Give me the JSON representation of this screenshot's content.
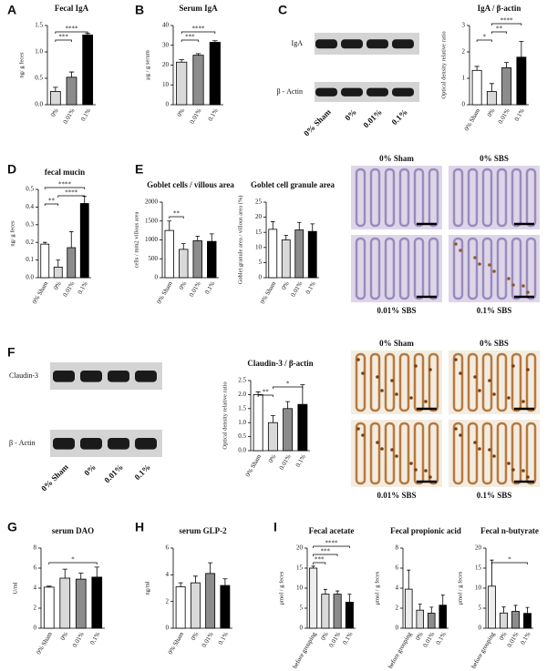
{
  "chart_data": [
    {
      "type": "bar",
      "panel": "A",
      "title": "Fecal IgA",
      "y_label": "ng/ g feces",
      "categories": [
        "0%",
        "0.01%",
        "0.1%"
      ],
      "values": [
        0.25,
        0.52,
        1.32
      ],
      "errors": [
        0.08,
        0.1,
        0.03
      ],
      "colors": [
        "#d9d9d9",
        "#8c8c8c",
        "#000000"
      ],
      "ylim": [
        0,
        1.5
      ],
      "yticks": [
        {
          "value": 0,
          "label": "0.0"
        },
        0.5,
        {
          "value": 1,
          "label": "1.0"
        },
        1.5
      ],
      "annotations": [
        {
          "text": "***",
          "from": 0,
          "to": 1
        },
        {
          "text": "****",
          "from": 0,
          "to": 2
        }
      ]
    },
    {
      "type": "bar",
      "panel": "B",
      "title": "Serum IgA",
      "y_label": "μg / g serum",
      "categories": [
        "0%",
        "0.01%",
        "0.1%"
      ],
      "values": [
        21.5,
        25,
        31.5
      ],
      "errors": [
        1.2,
        0.8,
        0.8
      ],
      "colors": [
        "#d9d9d9",
        "#8c8c8c",
        "#000000"
      ],
      "ylim": [
        0,
        40
      ],
      "yticks": [
        0,
        10,
        20,
        30,
        40
      ],
      "annotations": [
        {
          "text": "***",
          "from": 0,
          "to": 1
        },
        {
          "text": "****",
          "from": 0,
          "to": 2
        }
      ]
    },
    {
      "type": "bar",
      "title": "IgA / β-actin",
      "y_label": "Optical density relative ratio",
      "categories": [
        "0% Sham",
        "0%",
        "0.01%",
        "0.1%"
      ],
      "values": [
        1.3,
        0.5,
        1.4,
        1.8
      ],
      "errors": [
        0.15,
        0.3,
        0.2,
        0.6
      ],
      "colors": [
        "#ffffff",
        "#d9d9d9",
        "#8c8c8c",
        "#000000"
      ],
      "ylim": [
        0,
        3
      ],
      "yticks": [
        0,
        1,
        2,
        3
      ],
      "annotations": [
        {
          "text": "*",
          "from": 0,
          "to": 1
        },
        {
          "text": "**",
          "from": 1,
          "to": 2
        },
        {
          "text": "****",
          "from": 1,
          "to": 3
        }
      ]
    },
    {
      "type": "bar",
      "panel": "D",
      "title": "fecal mucin",
      "y_label": "ng/ g feces",
      "categories": [
        "0% Sham",
        "0%",
        "0.01%",
        "0.1%"
      ],
      "values": [
        0.19,
        0.06,
        0.17,
        0.42
      ],
      "errors": [
        0.01,
        0.04,
        0.09,
        0.04
      ],
      "colors": [
        "#ffffff",
        "#d9d9d9",
        "#8c8c8c",
        "#000000"
      ],
      "ylim": [
        0,
        0.5
      ],
      "yticks": [
        {
          "value": 0,
          "label": "0.0"
        },
        0.1,
        0.2,
        0.3,
        0.4,
        0.5
      ],
      "annotations": [
        {
          "text": "**",
          "from": 0,
          "to": 1
        },
        {
          "text": "****",
          "from": 1,
          "to": 3
        },
        {
          "text": "****",
          "from": 0,
          "to": 3
        }
      ]
    },
    {
      "type": "bar",
      "panel": "E",
      "title": "Goblet cells / villous area",
      "y_label": "cells / mm2 villous area",
      "categories": [
        "0% Sham",
        "0%",
        "0.01%",
        "0.1%"
      ],
      "values": [
        1250,
        750,
        980,
        960
      ],
      "errors": [
        250,
        150,
        120,
        200
      ],
      "colors": [
        "#ffffff",
        "#d9d9d9",
        "#8c8c8c",
        "#000000"
      ],
      "ylim": [
        0,
        2000
      ],
      "yticks": [
        0,
        500,
        1000,
        1500,
        2000
      ],
      "annotations": [
        {
          "text": "**",
          "from": 0,
          "to": 1
        }
      ]
    },
    {
      "type": "bar",
      "title": "Goblet cell granule area",
      "y_label": "Goblet granule area / villous area (%)",
      "categories": [
        "0% Sham",
        "0%",
        "0.01%",
        "0.1%"
      ],
      "values": [
        16,
        12.5,
        15.8,
        15.3
      ],
      "errors": [
        2.5,
        1.5,
        2.5,
        2.5
      ],
      "colors": [
        "#ffffff",
        "#d9d9d9",
        "#8c8c8c",
        "#000000"
      ],
      "ylim": [
        0,
        25
      ],
      "yticks": [
        0,
        5,
        10,
        15,
        20,
        25
      ],
      "annotations": []
    },
    {
      "type": "bar",
      "title": "Claudin-3 / β-actin",
      "y_label": "Optical density relative ratio",
      "categories": [
        "0% Sham",
        "0%",
        "0.01%",
        "0.1%"
      ],
      "values": [
        2.0,
        1.0,
        1.5,
        1.65
      ],
      "errors": [
        0.1,
        0.25,
        0.25,
        0.7
      ],
      "colors": [
        "#ffffff",
        "#d9d9d9",
        "#8c8c8c",
        "#000000"
      ],
      "ylim": [
        0,
        2.5
      ],
      "yticks": [
        {
          "value": 0,
          "label": "0.0"
        },
        0.5,
        {
          "value": 1,
          "label": "1.0"
        },
        1.5,
        {
          "value": 2,
          "label": "2.0"
        },
        2.5
      ],
      "annotations": [
        {
          "text": "**",
          "from": 0,
          "to": 1
        },
        {
          "text": "*",
          "from": 1,
          "to": 3
        }
      ]
    },
    {
      "type": "bar",
      "panel": "G",
      "title": "serum DAO",
      "y_label": "U/ml",
      "categories": [
        "0% Sham",
        "0%",
        "0.01%",
        "0.1%"
      ],
      "values": [
        4.1,
        5.0,
        4.9,
        5.1
      ],
      "errors": [
        0.1,
        0.9,
        0.6,
        1.0
      ],
      "colors": [
        "#ffffff",
        "#d9d9d9",
        "#8c8c8c",
        "#000000"
      ],
      "ylim": [
        0,
        8
      ],
      "yticks": [
        0,
        2,
        4,
        6,
        8
      ],
      "annotations": [
        {
          "text": "*",
          "from": 0,
          "to": 3
        }
      ]
    },
    {
      "type": "bar",
      "panel": "H",
      "title": "serum GLP-2",
      "y_label": "ng/ml",
      "categories": [
        "0% Sham",
        "0%",
        "0.01%",
        "0.1%"
      ],
      "values": [
        3.1,
        3.4,
        4.1,
        3.2
      ],
      "errors": [
        0.3,
        0.5,
        0.8,
        0.5
      ],
      "colors": [
        "#ffffff",
        "#d9d9d9",
        "#8c8c8c",
        "#000000"
      ],
      "ylim": [
        0,
        6
      ],
      "yticks": [
        0,
        2,
        4,
        6
      ],
      "annotations": []
    },
    {
      "type": "bar",
      "panel": "I",
      "title": "Fecal acetate",
      "y_label": "μmol / g feces",
      "categories": [
        "before grouping",
        "0%",
        "0.01%",
        "0.1%"
      ],
      "values": [
        15,
        8.5,
        8.5,
        6.5
      ],
      "errors": [
        0.5,
        1.2,
        0.8,
        2.0
      ],
      "colors": [
        "#eeeeee",
        "#d9d9d9",
        "#8c8c8c",
        "#000000"
      ],
      "ylim": [
        0,
        20
      ],
      "yticks": [
        0,
        5,
        10,
        15,
        20
      ],
      "annotations": [
        {
          "text": "***",
          "from": 0,
          "to": 1
        },
        {
          "text": "***",
          "from": 0,
          "to": 2
        },
        {
          "text": "****",
          "from": 0,
          "to": 3
        }
      ]
    },
    {
      "type": "bar",
      "title": "Fecal propionic acid",
      "y_label": "μmol / g feces",
      "categories": [
        "before grouping",
        "0%",
        "0.01%",
        "0.1%"
      ],
      "values": [
        3.9,
        1.8,
        1.5,
        2.3
      ],
      "errors": [
        1.9,
        0.6,
        0.6,
        1.0
      ],
      "colors": [
        "#eeeeee",
        "#d9d9d9",
        "#8c8c8c",
        "#000000"
      ],
      "ylim": [
        0,
        8
      ],
      "yticks": [
        0,
        2,
        4,
        6,
        8
      ],
      "annotations": []
    },
    {
      "type": "bar",
      "title": "Fecal n-butyrate",
      "y_label": "μmol / g feces",
      "categories": [
        "before grouping",
        "0%",
        "0.01%",
        "0.1%"
      ],
      "values": [
        10.5,
        3.8,
        4.2,
        3.7
      ],
      "errors": [
        6.5,
        1.5,
        1.5,
        1.5
      ],
      "colors": [
        "#eeeeee",
        "#d9d9d9",
        "#8c8c8c",
        "#000000"
      ],
      "ylim": [
        0,
        20
      ],
      "yticks": [
        0,
        5,
        10,
        15,
        20
      ],
      "annotations": [
        {
          "text": "*",
          "from": 0,
          "to": 3
        }
      ]
    }
  ],
  "blots": [
    {
      "panel": "C",
      "rows": [
        "IgA",
        "β - Actin"
      ],
      "lanes": [
        "0% Sham",
        "0%",
        "0.01%",
        "0.1%"
      ]
    },
    {
      "panel": "F",
      "rows": [
        "Claudin-3",
        "β - Actin"
      ],
      "lanes": [
        "0% Sham",
        "0%",
        "0.01%",
        "0.1%"
      ]
    }
  ],
  "histology": [
    {
      "labels": [
        "0% Sham",
        "0% SBS",
        "0.01% SBS",
        "0.1% SBS"
      ]
    },
    {
      "labels": [
        "0% Sham",
        "0% SBS",
        "0.01% SBS",
        "0.1% SBS"
      ]
    }
  ]
}
